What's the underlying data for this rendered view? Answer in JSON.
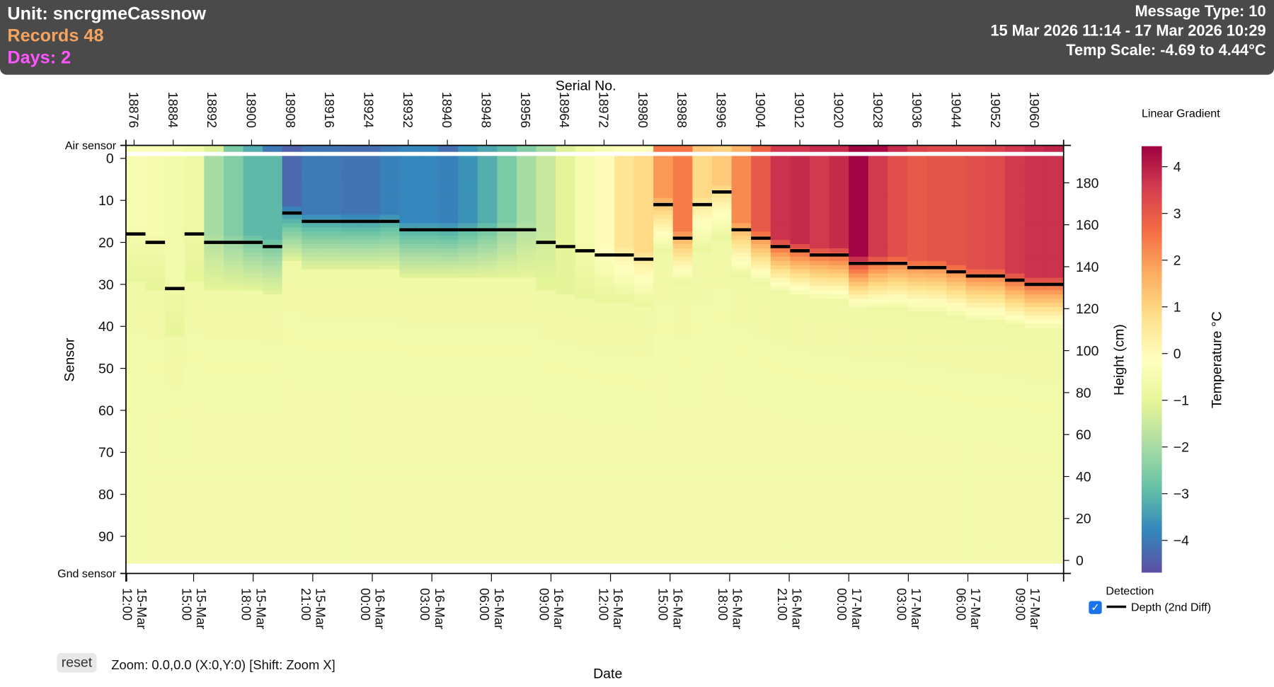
{
  "header": {
    "unit": "Unit: sncrgmeCassnow",
    "records": "Records 48",
    "days": "Days: 2",
    "message_type": "Message Type: 10",
    "range": "15 Mar 2026 11:14 - 17 Mar 2026 10:29",
    "temp_scale": "Temp Scale: -4.69 to 4.44°C"
  },
  "colors": {
    "header_bg": "#4a4a4a",
    "records": "#f4a460",
    "days": "#ff55ff"
  },
  "controls": {
    "reset": "reset",
    "zoom_status": "Zoom: 0.0,0.0 (X:0,Y:0) [Shift: Zoom X]",
    "legend_title": "Detection",
    "legend_item": "Depth (2nd Diff)",
    "detection_checked": true
  },
  "chart_data": {
    "type": "heatmap",
    "top_axis_label": "Serial No.",
    "serial_ticks": [
      "18876",
      "18884",
      "18892",
      "18900",
      "18908",
      "18916",
      "18924",
      "18932",
      "18940",
      "18948",
      "18956",
      "18964",
      "18972",
      "18980",
      "18988",
      "18996",
      "19004",
      "19012",
      "19020",
      "19028",
      "19036",
      "19044",
      "19052",
      "19060"
    ],
    "left_axis_label": "Sensor",
    "left_ticks": [
      0,
      10,
      20,
      30,
      40,
      50,
      60,
      70,
      80,
      90
    ],
    "left_top_label": "Air sensor",
    "left_bottom_label": "Gnd sensor",
    "right_axis_label": "Height (cm)",
    "right_ticks": [
      0,
      20,
      40,
      60,
      80,
      100,
      120,
      140,
      160,
      180
    ],
    "x_axis_label": "Date",
    "date_ticks": [
      [
        "15-Mar",
        "12:00"
      ],
      [
        "15-Mar",
        "15:00"
      ],
      [
        "15-Mar",
        "18:00"
      ],
      [
        "15-Mar",
        "21:00"
      ],
      [
        "16-Mar",
        "00:00"
      ],
      [
        "16-Mar",
        "03:00"
      ],
      [
        "16-Mar",
        "06:00"
      ],
      [
        "16-Mar",
        "09:00"
      ],
      [
        "16-Mar",
        "12:00"
      ],
      [
        "16-Mar",
        "15:00"
      ],
      [
        "16-Mar",
        "18:00"
      ],
      [
        "16-Mar",
        "21:00"
      ],
      [
        "17-Mar",
        "00:00"
      ],
      [
        "17-Mar",
        "03:00"
      ],
      [
        "17-Mar",
        "06:00"
      ],
      [
        "17-Mar",
        "09:00"
      ]
    ],
    "sensor_count": 97,
    "columns": 48,
    "air_temp": [
      -0.3,
      -0.3,
      -0.4,
      -0.6,
      -1.2,
      -2.6,
      -3.2,
      -4.0,
      -4.4,
      -4.1,
      -4.1,
      -4.2,
      -4.2,
      -4.0,
      -3.8,
      -3.8,
      -4.2,
      -3.6,
      -3.3,
      -3.0,
      -2.5,
      -2.0,
      -1.2,
      -0.7,
      -0.4,
      -0.2,
      -0.2,
      2.5,
      2.5,
      1.2,
      1.0,
      1.6,
      2.8,
      3.6,
      3.6,
      3.8,
      3.8,
      4.4,
      4.3,
      3.8,
      3.4,
      3.3,
      3.3,
      3.3,
      3.4,
      3.6,
      3.8,
      3.9
    ],
    "surface_temp": [
      -0.4,
      -0.5,
      -0.6,
      -0.7,
      -2.0,
      -2.5,
      -3.0,
      -3.0,
      -4.3,
      -4.0,
      -4.0,
      -4.1,
      -4.1,
      -3.9,
      -3.8,
      -3.8,
      -3.9,
      -3.6,
      -3.2,
      -2.6,
      -2.0,
      -1.5,
      -1.0,
      -0.5,
      0.0,
      0.6,
      0.9,
      2.0,
      2.4,
      0.9,
      1.2,
      2.2,
      3.0,
      3.7,
      3.8,
      3.6,
      3.8,
      4.4,
      3.6,
      3.2,
      3.0,
      3.1,
      3.1,
      3.2,
      3.3,
      3.6,
      3.7,
      3.7
    ],
    "detected_depth_sensor": [
      18,
      20,
      31,
      18,
      20,
      20,
      20,
      21,
      13,
      15,
      15,
      15,
      15,
      15,
      17,
      17,
      17,
      17,
      17,
      17,
      17,
      20,
      21,
      22,
      23,
      23,
      24,
      11,
      19,
      11,
      8,
      17,
      19,
      21,
      22,
      23,
      23,
      25,
      25,
      25,
      26,
      26,
      27,
      28,
      28,
      29,
      30,
      30
    ],
    "deep_snow_temp": -0.7,
    "colorbar": {
      "title": "Linear Gradient",
      "label": "Temperature °C",
      "min": -4.69,
      "max": 4.44,
      "ticks": [
        4,
        3,
        2,
        1,
        0,
        -1,
        -2,
        -3,
        -4
      ],
      "tick_labels": [
        "4",
        "3",
        "2",
        "1",
        "0",
        "−1",
        "−2",
        "−3",
        "−4"
      ]
    }
  }
}
